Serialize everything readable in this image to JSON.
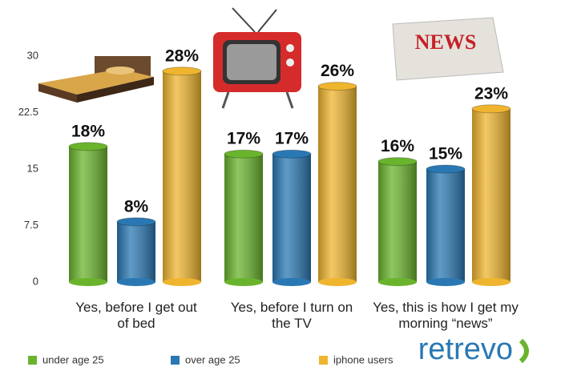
{
  "chart_data": {
    "type": "bar",
    "categories": [
      "Yes, before I get out of bed",
      "Yes, before I turn on the TV",
      "Yes, this is how I get my morning “news”"
    ],
    "series": [
      {
        "name": "under age 25",
        "color": "#6ab42d",
        "values": [
          18,
          17,
          16
        ],
        "value_labels": [
          "18%",
          "17%",
          "16%"
        ]
      },
      {
        "name": "over age 25",
        "color": "#2a78b3",
        "values": [
          8,
          17,
          15
        ],
        "value_labels": [
          "8%",
          "17%",
          "15%"
        ]
      },
      {
        "name": "iphone users",
        "color": "#efb52f",
        "values": [
          28,
          26,
          23
        ],
        "value_labels": [
          "28%",
          "26%",
          "23%"
        ]
      }
    ],
    "ylim": [
      0,
      30
    ],
    "yticks": [
      0,
      7.5,
      15,
      22.5,
      30
    ],
    "legend": "bottom",
    "news_icon_text": "NEWS",
    "logo": "retrevo"
  }
}
